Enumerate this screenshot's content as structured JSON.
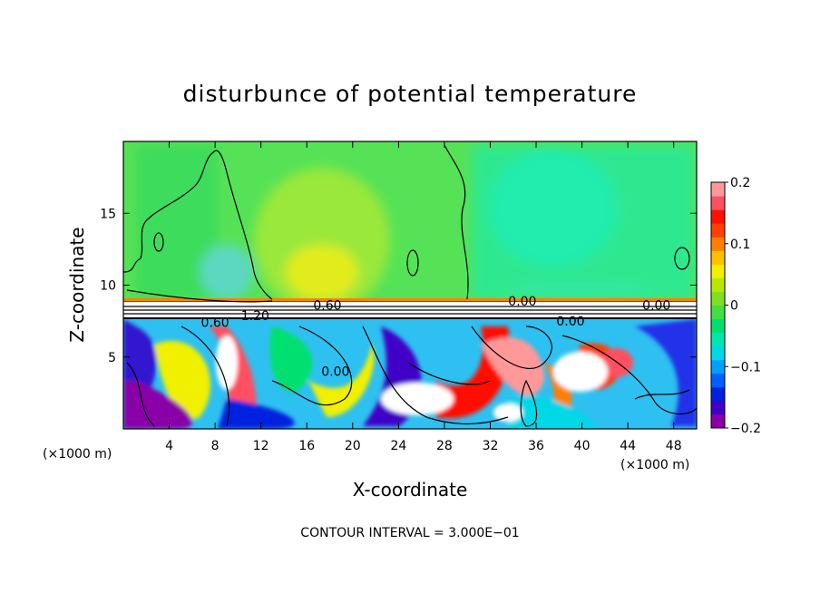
{
  "chart_data": {
    "type": "heatmap",
    "title": "disturbunce of potential temperature",
    "xlabel": "X-coordinate",
    "ylabel": "Z-coordinate",
    "x_unit": "(×1000 m)",
    "x_unit_right": "(×1000 m)",
    "xlim": [
      0,
      50
    ],
    "ylim": [
      0,
      20
    ],
    "x_ticks": [
      4,
      8,
      12,
      16,
      20,
      24,
      28,
      32,
      36,
      40,
      44,
      48
    ],
    "y_ticks": [
      5,
      10,
      15
    ],
    "colorbar": {
      "min": -0.2,
      "max": 0.2,
      "ticks": [
        {
          "value": 0.2,
          "label": "0.2"
        },
        {
          "value": 0.1,
          "label": "0.1"
        },
        {
          "value": 0,
          "label": "0"
        },
        {
          "value": -0.1,
          "label": "−0.1"
        },
        {
          "value": -0.2,
          "label": "−0.2"
        }
      ],
      "colors": [
        "#8a00a8",
        "#4000c8",
        "#0020e0",
        "#0060ff",
        "#00a0ff",
        "#00d8e8",
        "#00e8b0",
        "#00e070",
        "#40e040",
        "#80e020",
        "#b8e800",
        "#f0f000",
        "#ffc000",
        "#ff8000",
        "#ff4000",
        "#ff1000",
        "#ff5060",
        "#ff9898"
      ]
    },
    "contour_labels": [
      {
        "text": "0.60",
        "x": 17.8,
        "z": 8.6
      },
      {
        "text": "1.20",
        "x": 11.5,
        "z": 7.9
      },
      {
        "text": "0.60",
        "x": 8.0,
        "z": 7.4
      },
      {
        "text": "0.00",
        "x": 34.8,
        "z": 8.9
      },
      {
        "text": "0.00",
        "x": 46.5,
        "z": 8.6
      },
      {
        "text": "0.00",
        "x": 39.0,
        "z": 7.5
      },
      {
        "text": "0.00",
        "x": 18.5,
        "z": 4.0
      }
    ],
    "contour_interval_text": "CONTOUR INTERVAL = 3.000E−01"
  }
}
